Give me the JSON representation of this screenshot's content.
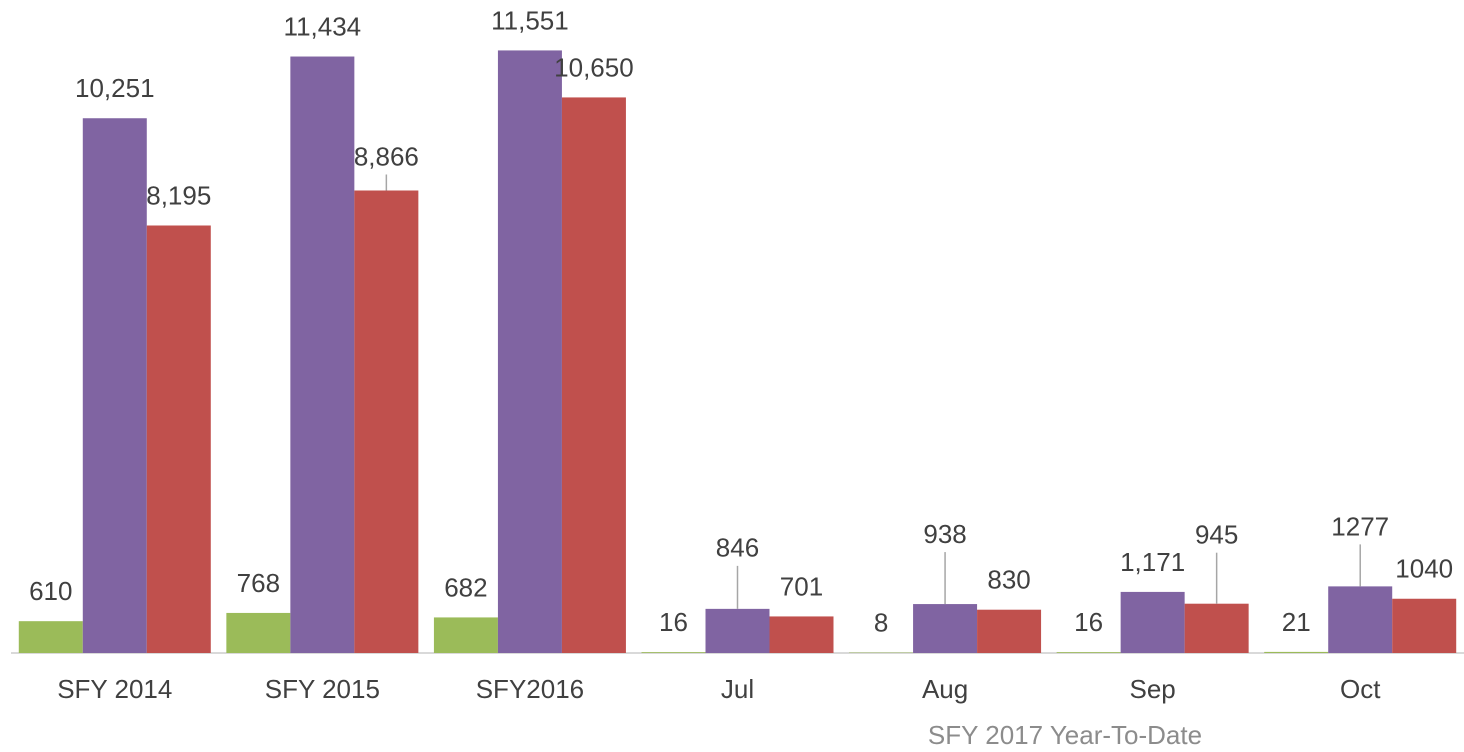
{
  "chart_data": {
    "type": "bar",
    "categories": [
      "SFY 2014",
      "SFY 2015",
      "SFY2016",
      "Jul",
      "Aug",
      "Sep",
      "Oct"
    ],
    "annotation": "SFY 2017 Year-To-Date",
    "series": [
      {
        "color": "#9bbb59",
        "values": [
          610,
          768,
          682,
          16,
          8,
          16,
          21
        ]
      },
      {
        "color": "#8064a2",
        "values": [
          10251,
          11434,
          11551,
          846,
          938,
          1171,
          1277
        ],
        "value_labels": [
          "10,251",
          "11,434",
          "11,551",
          "846",
          "938",
          "1,171",
          "1277"
        ]
      },
      {
        "color": "#c0504d",
        "values": [
          8195,
          8866,
          10650,
          701,
          830,
          945,
          1040
        ],
        "value_labels": [
          "8,195",
          "8,866",
          "10,650",
          "701",
          "830",
          "945",
          "1040"
        ]
      }
    ],
    "ylim": [
      0,
      12000
    ]
  }
}
